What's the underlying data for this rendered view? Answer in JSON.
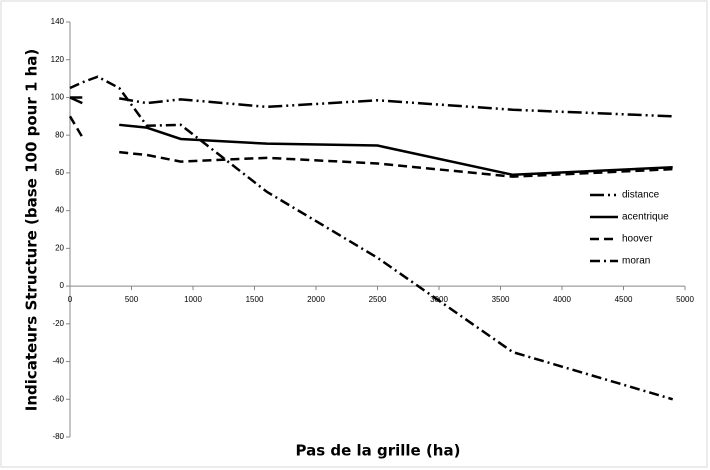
{
  "chart_data": {
    "type": "line",
    "x_label": "Pas de la grille (ha)",
    "y_label": "Indicateurs Structure (base 100 pour 1 ha)",
    "x": [
      0,
      100,
      225,
      400,
      625,
      900,
      1600,
      2500,
      3600,
      4900
    ],
    "series": [
      {
        "name": "distance",
        "color": "#000000",
        "style": "long-dash-dot-dot",
        "values": [
          100,
          100,
          null,
          99.5,
          97,
          99,
          95,
          98.5,
          93.5,
          90
        ]
      },
      {
        "name": "acentrique",
        "color": "#000000",
        "style": "solid",
        "values": [
          100,
          97,
          null,
          85.5,
          84,
          78,
          75.5,
          74.5,
          59,
          63
        ]
      },
      {
        "name": "hoover",
        "color": "#000000",
        "style": "dashed",
        "values": [
          90,
          79,
          null,
          71,
          69.5,
          66,
          68,
          65,
          58,
          62
        ]
      },
      {
        "name": "moran",
        "color": "#000000",
        "style": "dash-dot",
        "values": [
          105,
          108,
          111,
          105,
          85,
          85.5,
          50,
          15,
          -35,
          -60
        ]
      }
    ],
    "xlim": [
      0,
      5000
    ],
    "xticks": [
      0,
      500,
      1000,
      1500,
      2000,
      2500,
      3000,
      3500,
      4000,
      4500,
      5000
    ],
    "ylim": [
      -80,
      140
    ],
    "yticks": [
      -80,
      -60,
      -40,
      -20,
      0,
      20,
      40,
      60,
      80,
      100,
      120,
      140
    ],
    "grid": false,
    "legend": "right"
  }
}
